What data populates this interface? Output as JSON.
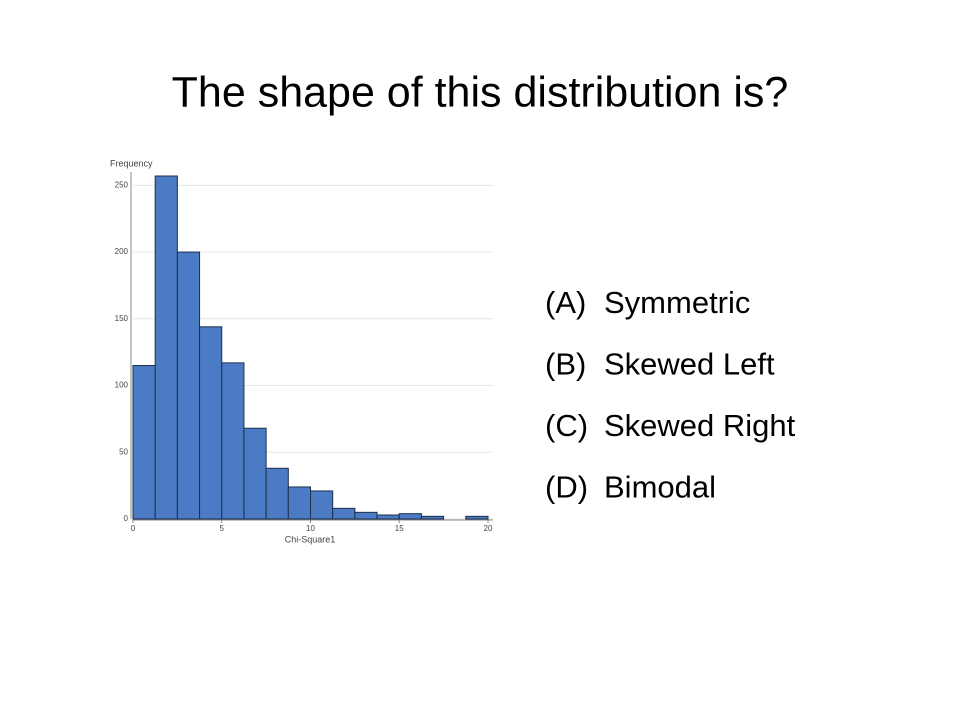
{
  "title": "The shape of this distribution is?",
  "options": [
    {
      "label": "(A)",
      "text": "Symmetric"
    },
    {
      "label": "(B)",
      "text": "Skewed Left"
    },
    {
      "label": "(C)",
      "text": "Skewed Right"
    },
    {
      "label": "(D)",
      "text": "Bimodal"
    }
  ],
  "chart_data": {
    "type": "histogram",
    "y_label": "Frequency",
    "x_label": "Chi-Square1",
    "bins": [
      0,
      1.25,
      2.5,
      3.75,
      5,
      6.25,
      7.5,
      8.75,
      10,
      11.25,
      12.5,
      13.75,
      15,
      16.25,
      17.5,
      18.75,
      20
    ],
    "values": [
      115,
      257,
      200,
      144,
      117,
      68,
      38,
      24,
      21,
      8,
      5,
      3,
      4,
      2,
      0,
      2
    ],
    "color": "#4a7bc4",
    "xlim": [
      0,
      20
    ],
    "xticks": [
      0,
      5,
      10,
      15,
      20
    ],
    "ylim": [
      0,
      260
    ],
    "yticks": [
      0,
      50,
      100,
      150,
      200,
      250
    ],
    "grid": true
  }
}
